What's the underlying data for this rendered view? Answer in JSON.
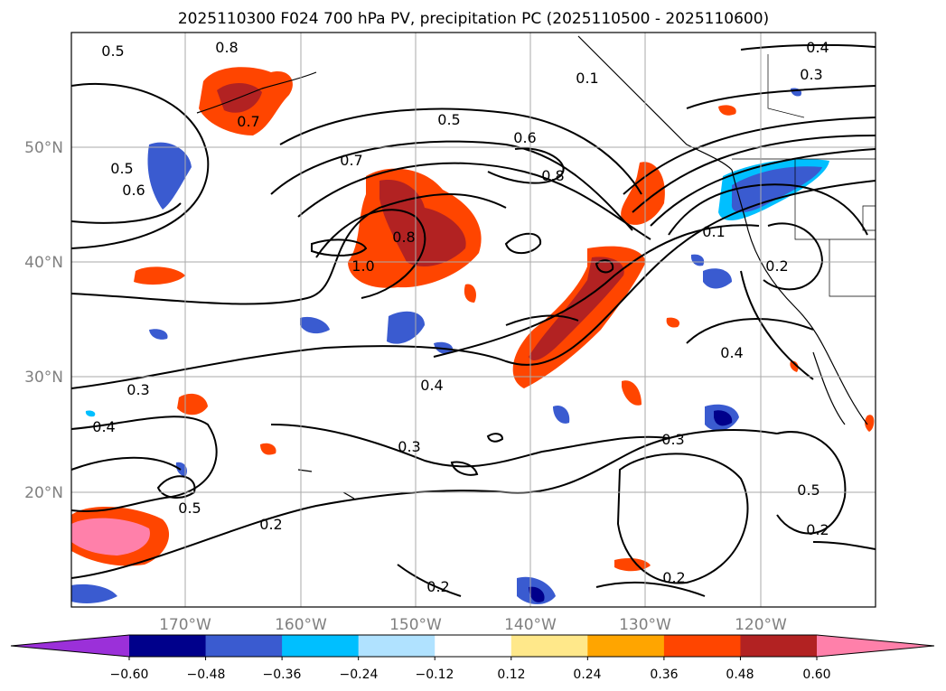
{
  "title": "2025110300 F024 700 hPa PV, precipitation PC (2025110500 - 2025110600)",
  "map": {
    "lat_labels": [
      "50°N",
      "40°N",
      "30°N",
      "20°N"
    ],
    "lon_labels": [
      "170°W",
      "160°W",
      "150°W",
      "140°W",
      "130°W",
      "120°W"
    ],
    "grid": true
  },
  "contour_labels": [
    "0.5",
    "0.8",
    "0.4",
    "0.3",
    "0.1",
    "0.7",
    "0.5",
    "0.6",
    "0.7",
    "0.5",
    "0.6",
    "0.8",
    "1.0",
    "0.8",
    "0.4",
    "0.4",
    "0.3",
    "0.3",
    "0.2",
    "0.2",
    "0.5",
    "0.2",
    "0.2",
    "0.5",
    "0.2",
    "0.3",
    "0.4",
    "0.1"
  ],
  "colorbar": {
    "ticks": [
      "−0.60",
      "−0.48",
      "−0.36",
      "−0.24",
      "−0.12",
      "0.12",
      "0.24",
      "0.36",
      "0.48",
      "0.60"
    ],
    "colors": [
      "#9b30d9",
      "#00008b",
      "#3a5bd0",
      "#00bfff",
      "#b0e2ff",
      "#ffffff",
      "#ffe88a",
      "#ffa500",
      "#ff4500",
      "#b22222",
      "#ff80aa"
    ]
  },
  "palette": {
    "neg_strong": "#00008b",
    "neg_mid": "#3a5bd0",
    "neg_light": "#00bfff",
    "pos_light": "#ffa500",
    "pos_mid": "#ff4500",
    "pos_strong": "#b22222",
    "pos_max": "#ff80aa"
  }
}
